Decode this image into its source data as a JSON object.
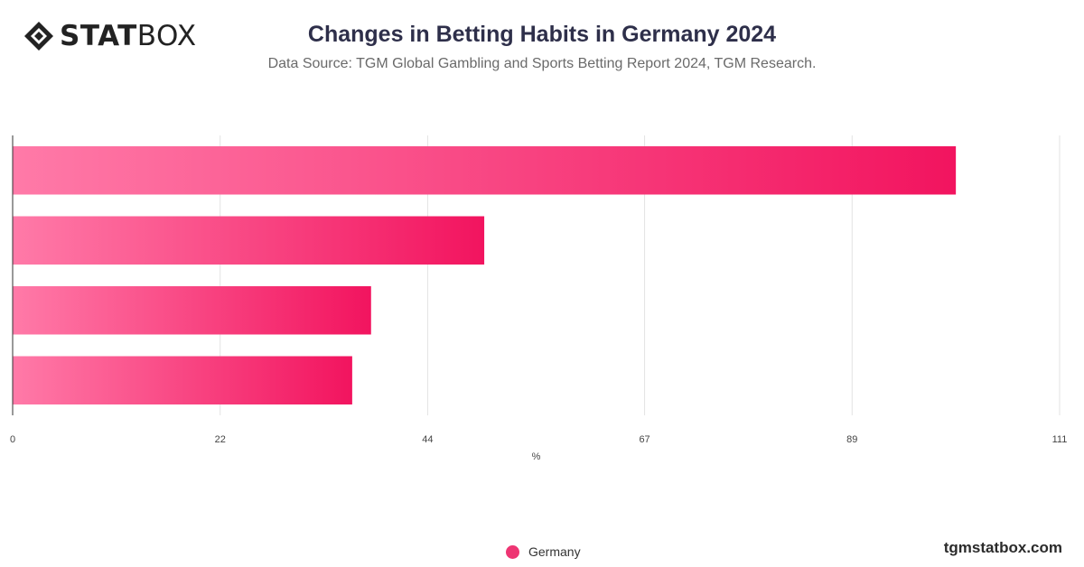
{
  "brand": {
    "logo_bold": "STAT",
    "logo_light": "BOX",
    "icon": "statbox-diamond-icon",
    "footer": "tgmstatbox.com"
  },
  "title": "Changes in Betting Habits in Germany 2024",
  "subtitle": "Data Source: TGM Global Gambling and Sports Betting Report 2024, TGM Research.",
  "colors": {
    "bar_start": "#ff7aa8",
    "bar_end": "#f2145f",
    "legend": "#ee3573",
    "grid": "#e3e3e3",
    "axis": "#333333"
  },
  "chart_data": {
    "type": "bar",
    "orientation": "horizontal",
    "categories": [
      "",
      "",
      "",
      ""
    ],
    "series": [
      {
        "name": "Germany",
        "values": [
          100,
          50,
          38,
          36
        ]
      }
    ],
    "xlim": [
      0,
      111
    ],
    "ticks": [
      0,
      22,
      44,
      67,
      89,
      111
    ],
    "xlabel": "%",
    "ylabel": "",
    "grid": true,
    "legend_position": "bottom-center"
  }
}
